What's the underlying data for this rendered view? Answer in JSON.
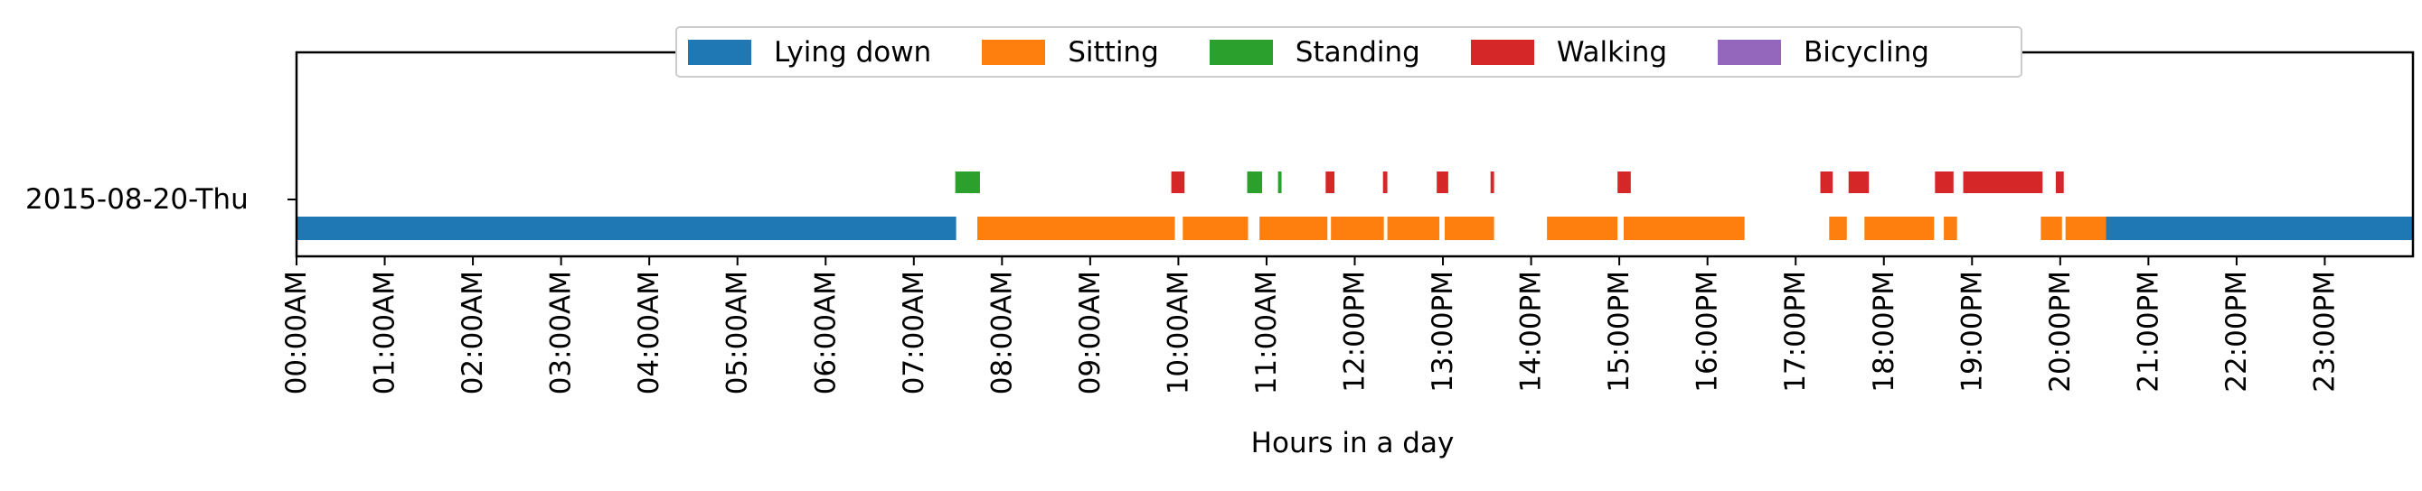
{
  "chart_data": {
    "type": "timeline",
    "xlabel": "Hours in a day",
    "ylabel": "",
    "row_label": "2015-08-20-Thu",
    "xlim": [
      0,
      24
    ],
    "x_ticks": [
      "00:00AM",
      "01:00AM",
      "02:00AM",
      "03:00AM",
      "04:00AM",
      "05:00AM",
      "06:00AM",
      "07:00AM",
      "08:00AM",
      "09:00AM",
      "10:00AM",
      "11:00AM",
      "12:00PM",
      "13:00PM",
      "14:00PM",
      "15:00PM",
      "16:00PM",
      "17:00PM",
      "18:00PM",
      "19:00PM",
      "20:00PM",
      "21:00PM",
      "22:00PM",
      "23:00PM"
    ],
    "legend_position": "top-center",
    "series": [
      {
        "name": "Lying down",
        "color": "#1f77b4",
        "level": 0,
        "segments": [
          [
            0.0,
            7.48
          ],
          [
            20.48,
            24.0
          ]
        ]
      },
      {
        "name": "Sitting",
        "color": "#ff7f0e",
        "level": 0,
        "segments": [
          [
            7.72,
            9.96
          ],
          [
            10.05,
            10.79
          ],
          [
            10.92,
            11.69
          ],
          [
            11.73,
            12.33
          ],
          [
            12.37,
            12.96
          ],
          [
            13.02,
            13.58
          ],
          [
            14.18,
            14.98
          ],
          [
            15.05,
            16.42
          ],
          [
            17.38,
            17.58
          ],
          [
            17.78,
            18.57
          ],
          [
            18.68,
            18.83
          ],
          [
            19.78,
            20.02
          ],
          [
            20.06,
            20.52
          ]
        ]
      },
      {
        "name": "Standing",
        "color": "#2ca02c",
        "level": 1,
        "segments": [
          [
            7.47,
            7.75
          ],
          [
            10.78,
            10.95
          ],
          [
            11.13,
            11.17
          ]
        ]
      },
      {
        "name": "Walking",
        "color": "#d62728",
        "level": 1,
        "segments": [
          [
            9.92,
            10.07
          ],
          [
            11.67,
            11.77
          ],
          [
            12.32,
            12.37
          ],
          [
            12.93,
            13.06
          ],
          [
            13.54,
            13.58
          ],
          [
            14.98,
            15.13
          ],
          [
            17.28,
            17.42
          ],
          [
            17.6,
            17.83
          ],
          [
            18.58,
            18.79
          ],
          [
            18.9,
            19.8
          ],
          [
            19.95,
            20.04
          ]
        ]
      },
      {
        "name": "Bicycling",
        "color": "#9467bd",
        "level": 1,
        "segments": []
      }
    ]
  }
}
